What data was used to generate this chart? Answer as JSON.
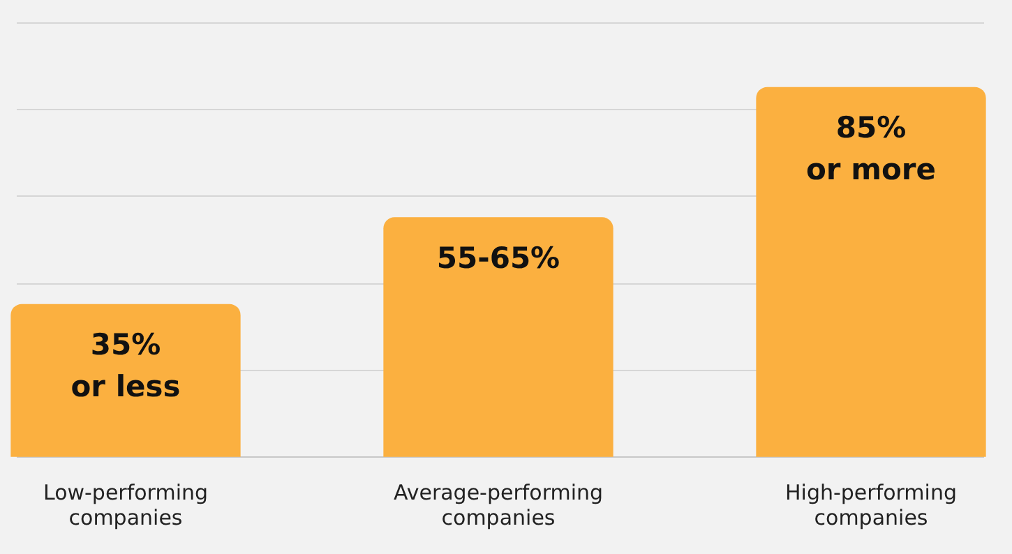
{
  "chart_data": {
    "type": "bar",
    "ylim": [
      0,
      100
    ],
    "yticks": [
      {
        "value": 0,
        "label": null
      },
      {
        "value": 20,
        "label": null
      },
      {
        "value": 40,
        "label": null
      },
      {
        "value": 60,
        "label": null
      },
      {
        "value": 80,
        "label": null
      }
    ],
    "categories": [
      "Low-performing companies",
      "Average-performing companies",
      "High-performing companies"
    ],
    "values": [
      35,
      55,
      85
    ],
    "value_labels": [
      "35% or less",
      "55-65%",
      "85% or more"
    ],
    "color": "#fbb040",
    "grid": "y"
  }
}
